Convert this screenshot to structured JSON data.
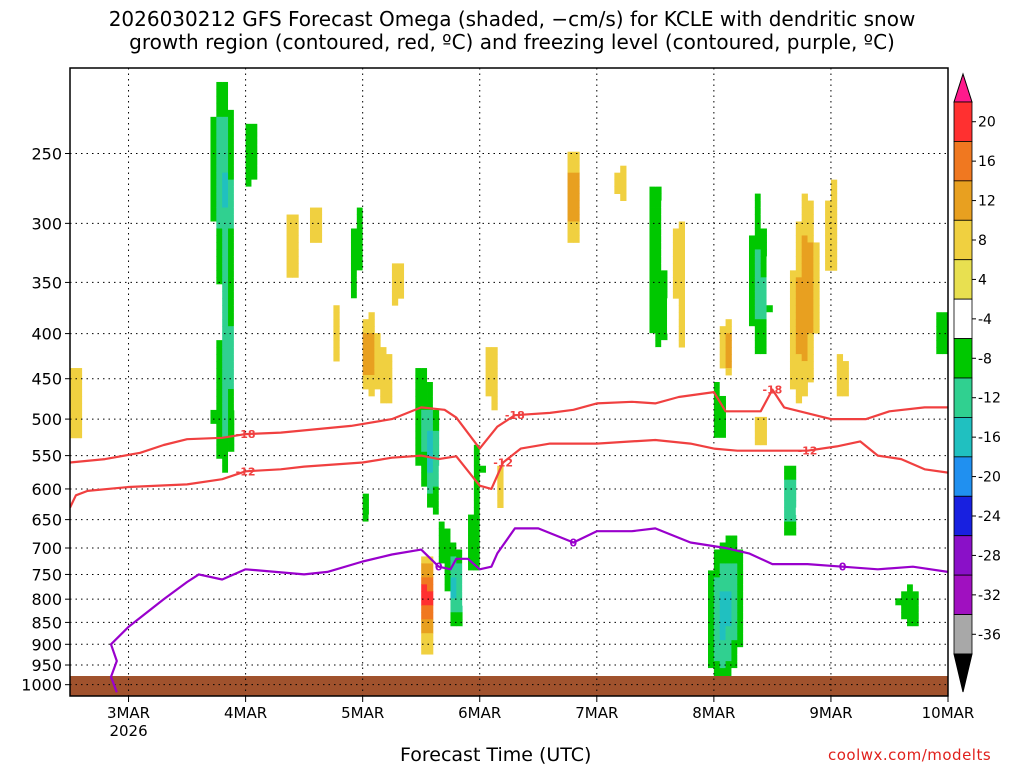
{
  "title_line1": "2026030212 GFS Forecast Omega (shaded, −cm/s) for KCLE with dendritic snow",
  "title_line2": "growth region (contoured, red, ºC) and freezing level (contoured, purple, ºC)",
  "credit": "coolwx.com/modelts",
  "chart_data": {
    "type": "heatmap",
    "title": "2026030212 GFS Forecast Omega (shaded, −cm/s) for KCLE with dendritic snow growth region (contoured, red, ºC) and freezing level (contoured, purple, ºC)",
    "xlabel": "Forecast Time (UTC)",
    "ylabel": "",
    "y_scale": "log-pressure",
    "ylim": [
      1030,
      200
    ],
    "x_range_days": [
      "2026-03-02 12Z",
      "2026-03-10 00Z"
    ],
    "grid": true,
    "x_ticks": [
      {
        "label": "3MAR",
        "sub": "2026",
        "day": 0.5
      },
      {
        "label": "4MAR",
        "day": 1.5
      },
      {
        "label": "5MAR",
        "day": 2.5
      },
      {
        "label": "6MAR",
        "day": 3.5
      },
      {
        "label": "7MAR",
        "day": 4.5
      },
      {
        "label": "8MAR",
        "day": 5.5
      },
      {
        "label": "9MAR",
        "day": 6.5
      },
      {
        "label": "10MAR",
        "day": 7.5
      }
    ],
    "y_ticks": [
      250,
      300,
      350,
      400,
      450,
      500,
      550,
      600,
      650,
      700,
      750,
      800,
      850,
      900,
      950,
      1000
    ],
    "colorbar": {
      "labels": [
        "20",
        "16",
        "12",
        "8",
        "4",
        "-4",
        "-8",
        "-12",
        "-16",
        "-20",
        "-24",
        "-28",
        "-32",
        "-36"
      ],
      "levels": [
        20,
        16,
        12,
        8,
        4,
        -4,
        -8,
        -12,
        -16,
        -20,
        -24,
        -28,
        -32,
        -36
      ],
      "colors": [
        "#ff1a8c",
        "#ff3030",
        "#f07820",
        "#e8a020",
        "#f0d040",
        "#e8e050",
        "#ffffff",
        "#00c800",
        "#30d090",
        "#20c0c0",
        "#2090f0",
        "#1820e0",
        "#8a10c8",
        "#a010c0",
        "#a8a8a8",
        "#000000"
      ]
    },
    "contours": [
      {
        "name": "-12",
        "color": "#f04040",
        "label": "-12",
        "points": [
          [
            0,
            630
          ],
          [
            0.05,
            610
          ],
          [
            0.15,
            603
          ],
          [
            0.5,
            597
          ],
          [
            1.0,
            593
          ],
          [
            1.3,
            585
          ],
          [
            1.5,
            573
          ],
          [
            1.8,
            570
          ],
          [
            2.0,
            566
          ],
          [
            2.5,
            560
          ],
          [
            2.75,
            553
          ],
          [
            3.0,
            550
          ],
          [
            3.15,
            555
          ],
          [
            3.3,
            551
          ],
          [
            3.5,
            595
          ],
          [
            3.6,
            600
          ],
          [
            3.7,
            560
          ],
          [
            3.85,
            540
          ],
          [
            4.1,
            533
          ],
          [
            4.5,
            533
          ],
          [
            4.8,
            530
          ],
          [
            5.0,
            528
          ],
          [
            5.3,
            533
          ],
          [
            5.5,
            540
          ],
          [
            5.7,
            543
          ],
          [
            6.0,
            543
          ],
          [
            6.3,
            543
          ],
          [
            6.55,
            537
          ],
          [
            6.75,
            530
          ],
          [
            6.9,
            550
          ],
          [
            7.1,
            555
          ],
          [
            7.3,
            570
          ],
          [
            7.5,
            575
          ]
        ]
      },
      {
        "name": "-18",
        "color": "#f04040",
        "label": "-18",
        "points": [
          [
            0,
            560
          ],
          [
            0.3,
            555
          ],
          [
            0.6,
            546
          ],
          [
            0.8,
            535
          ],
          [
            1.0,
            527
          ],
          [
            1.3,
            525
          ],
          [
            1.5,
            520
          ],
          [
            1.8,
            518
          ],
          [
            2.0,
            515
          ],
          [
            2.4,
            509
          ],
          [
            2.75,
            500
          ],
          [
            3.0,
            485
          ],
          [
            3.2,
            488
          ],
          [
            3.3,
            498
          ],
          [
            3.5,
            540
          ],
          [
            3.65,
            510
          ],
          [
            3.8,
            495
          ],
          [
            4.1,
            492
          ],
          [
            4.3,
            488
          ],
          [
            4.5,
            480
          ],
          [
            4.8,
            478
          ],
          [
            5.0,
            480
          ],
          [
            5.2,
            472
          ],
          [
            5.5,
            466
          ],
          [
            5.6,
            490
          ],
          [
            5.9,
            490
          ],
          [
            6.0,
            463
          ],
          [
            6.1,
            485
          ],
          [
            6.5,
            500
          ],
          [
            6.8,
            500
          ],
          [
            7.0,
            490
          ],
          [
            7.3,
            485
          ],
          [
            7.5,
            485
          ]
        ]
      },
      {
        "name": "0",
        "color": "#9900cc",
        "label": "0",
        "points": [
          [
            0.4,
            1020
          ],
          [
            0.35,
            980
          ],
          [
            0.4,
            940
          ],
          [
            0.35,
            900
          ],
          [
            0.5,
            860
          ],
          [
            0.8,
            800
          ],
          [
            1.0,
            765
          ],
          [
            1.1,
            750
          ],
          [
            1.3,
            760
          ],
          [
            1.5,
            740
          ],
          [
            2.0,
            750
          ],
          [
            2.2,
            745
          ],
          [
            2.5,
            725
          ],
          [
            2.75,
            712
          ],
          [
            3.0,
            703
          ],
          [
            3.15,
            735
          ],
          [
            3.25,
            740
          ],
          [
            3.3,
            720
          ],
          [
            3.4,
            720
          ],
          [
            3.5,
            740
          ],
          [
            3.6,
            735
          ],
          [
            3.65,
            710
          ],
          [
            3.8,
            665
          ],
          [
            4.0,
            665
          ],
          [
            4.3,
            690
          ],
          [
            4.5,
            670
          ],
          [
            4.8,
            670
          ],
          [
            5.0,
            665
          ],
          [
            5.3,
            690
          ],
          [
            5.6,
            700
          ],
          [
            5.8,
            710
          ],
          [
            6.0,
            730
          ],
          [
            6.3,
            730
          ],
          [
            6.6,
            735
          ],
          [
            6.9,
            740
          ],
          [
            7.2,
            735
          ],
          [
            7.5,
            745
          ]
        ]
      }
    ]
  }
}
